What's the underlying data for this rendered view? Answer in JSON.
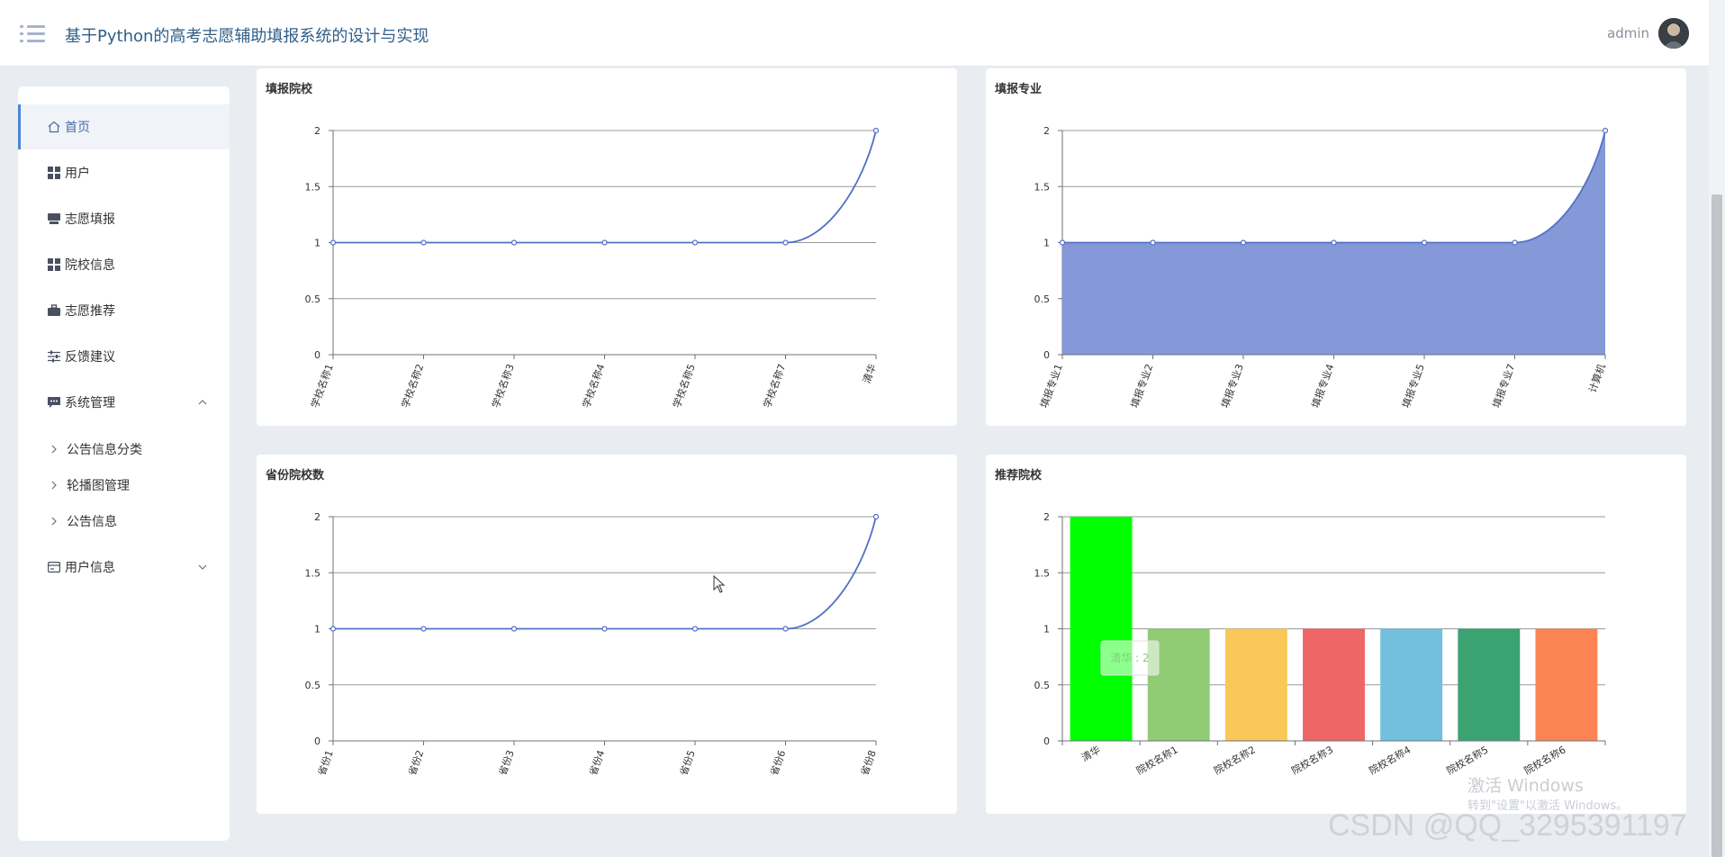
{
  "app": {
    "title": "基于Python的高考志愿辅助填报系统的设计与实现"
  },
  "header": {
    "username": "admin"
  },
  "sidebar": {
    "items": [
      {
        "label": "首页",
        "icon": "home-icon"
      },
      {
        "label": "用户",
        "icon": "grid-icon"
      },
      {
        "label": "志愿填报",
        "icon": "inbox-icon"
      },
      {
        "label": "院校信息",
        "icon": "grid-icon"
      },
      {
        "label": "志愿推荐",
        "icon": "briefcase-icon"
      },
      {
        "label": "反馈建议",
        "icon": "sliders-icon"
      },
      {
        "label": "系统管理",
        "icon": "chat-icon"
      },
      {
        "label": "用户信息",
        "icon": "card-icon"
      }
    ],
    "submenu": [
      {
        "label": "公告信息分类"
      },
      {
        "label": "轮播图管理"
      },
      {
        "label": "公告信息"
      }
    ]
  },
  "panels": {
    "p1": {
      "title": "填报院校"
    },
    "p2": {
      "title": "填报专业"
    },
    "p3": {
      "title": "省份院校数"
    },
    "p4": {
      "title": "推荐院校"
    }
  },
  "tooltip": {
    "text": "清华 : 2"
  },
  "watermark": {
    "line1": "激活 Windows",
    "line2": "转到\"设置\"以激活 Windows。"
  },
  "footer_watermark": "CSDN @QQ_3295391197",
  "chart_data": [
    {
      "type": "line",
      "title": "填报院校",
      "x": [
        "学校名称1",
        "学校名称2",
        "学校名称3",
        "学校名称4",
        "学校名称5",
        "学校名称7",
        "清华"
      ],
      "values": [
        1,
        1,
        1,
        1,
        1,
        1,
        2
      ],
      "ylim": [
        0,
        2
      ],
      "yticks": [
        "0",
        "0.5",
        "1",
        "1.5",
        "2"
      ],
      "smooth": true,
      "color": "#5470c6"
    },
    {
      "type": "area",
      "title": "填报专业",
      "x": [
        "填报专业1",
        "填报专业2",
        "填报专业3",
        "填报专业4",
        "填报专业5",
        "填报专业7",
        "计算机"
      ],
      "values": [
        1,
        1,
        1,
        1,
        1,
        1,
        2
      ],
      "ylim": [
        0,
        2
      ],
      "yticks": [
        "0",
        "0.5",
        "1",
        "1.5",
        "2"
      ],
      "smooth": true,
      "color": "#5470c6",
      "fill": "#8599d8"
    },
    {
      "type": "line",
      "title": "省份院校数",
      "x": [
        "省份1",
        "省份2",
        "省份3",
        "省份4",
        "省份5",
        "省份6",
        "省份8"
      ],
      "values": [
        1,
        1,
        1,
        1,
        1,
        1,
        2
      ],
      "ylim": [
        0,
        2
      ],
      "yticks": [
        "0",
        "0.5",
        "1",
        "1.5",
        "2"
      ],
      "smooth": true,
      "color": "#5470c6"
    },
    {
      "type": "bar",
      "title": "推荐院校",
      "categories": [
        "清华",
        "院校名称1",
        "院校名称2",
        "院校名称3",
        "院校名称4",
        "院校名称5",
        "院校名称6"
      ],
      "values": [
        2,
        1,
        1,
        1,
        1,
        1,
        1
      ],
      "ylim": [
        0,
        2
      ],
      "yticks": [
        "0",
        "0.5",
        "1",
        "1.5",
        "2"
      ],
      "colors": [
        "#00ff00",
        "#91cc75",
        "#fac858",
        "#ee6666",
        "#73c0de",
        "#3ba272",
        "#fc8452"
      ]
    }
  ]
}
